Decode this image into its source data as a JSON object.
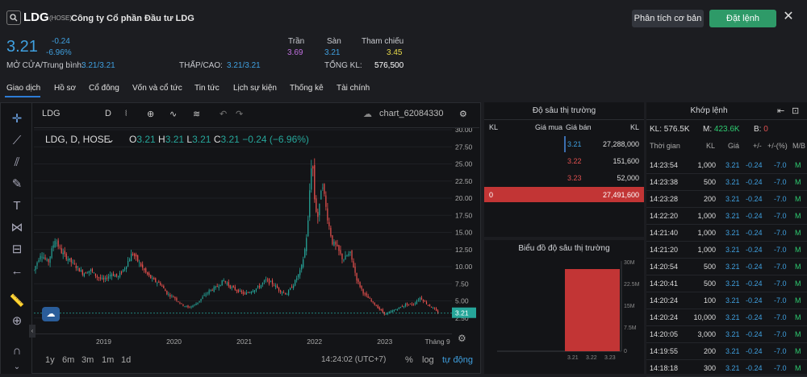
{
  "header": {
    "ticker": "LDG",
    "exchange": "(HOSE)",
    "company": "Công ty Cổ phần Đầu tư LDG",
    "btn_analysis": "Phân tích cơ bản",
    "btn_order": "Đặt lệnh",
    "close": "✕"
  },
  "quote": {
    "price": "3.21",
    "change": "-0.24",
    "change_pct": "-6.96%",
    "open_avg_label": "MỞ CỬA/Trung bình:",
    "open_avg_value": "3.21/3.21",
    "low_high_label": "THẤP/CAO:",
    "low_high_value": "3.21/3.21",
    "ceil_label": "Trần",
    "ceil_value": "3.69",
    "floor_label": "Sàn",
    "floor_value": "3.21",
    "ref_label": "Tham chiếu",
    "ref_value": "3.45",
    "total_vol_label": "TỔNG KL:",
    "total_vol_value": "576,500"
  },
  "tabs": [
    "Giao dịch",
    "Hồ sơ",
    "Cổ đông",
    "Vốn và cổ tức",
    "Tin tức",
    "Lịch sự kiện",
    "Thống kê",
    "Tài chính"
  ],
  "chart": {
    "symbol": "LDG",
    "interval": "D",
    "chart_name": "chart_62084330",
    "legend_title": "LDG, D, HOSE",
    "ohlc": {
      "o_label": "O",
      "o": "3.21",
      "h_label": "H",
      "h": "3.21",
      "l_label": "L",
      "l": "3.21",
      "c_label": "C",
      "c": "3.21",
      "chg": "−0.24 (−6.96%)"
    },
    "current_price_tag": "3.21",
    "time": "14:24:02 (UTC+7)",
    "ranges": [
      "1y",
      "6m",
      "3m",
      "1m",
      "1d"
    ],
    "opt_pct": "%",
    "opt_log": "log",
    "opt_auto": "tự động",
    "colors": {
      "up": "#26a69a",
      "down": "#ef5350",
      "bg": "#131417"
    }
  },
  "chart_data": {
    "type": "candlestick",
    "title": "",
    "xlabel": "",
    "ylabel": "",
    "ylim": [
      0,
      30
    ],
    "y_ticks": [
      "30.00",
      "27.50",
      "25.00",
      "22.50",
      "20.00",
      "17.50",
      "15.00",
      "12.50",
      "10.00",
      "7.50",
      "5.00",
      "2.50"
    ],
    "x_ticks": [
      "2019",
      "2020",
      "2021",
      "2022",
      "2023",
      "Tháng 9"
    ],
    "close_path": {
      "x": [
        2018.0,
        2018.1,
        2018.2,
        2018.3,
        2018.4,
        2018.5,
        2018.6,
        2018.7,
        2018.8,
        2018.9,
        2019.0,
        2019.1,
        2019.2,
        2019.3,
        2019.4,
        2019.5,
        2019.6,
        2019.7,
        2019.8,
        2019.9,
        2020.0,
        2020.1,
        2020.2,
        2020.3,
        2020.4,
        2020.5,
        2020.6,
        2020.7,
        2020.8,
        2020.9,
        2021.0,
        2021.1,
        2021.2,
        2021.3,
        2021.4,
        2021.5,
        2021.6,
        2021.7,
        2021.8,
        2021.85,
        2021.9,
        2021.93,
        2021.96,
        2022.0,
        2022.05,
        2022.1,
        2022.15,
        2022.2,
        2022.25,
        2022.3,
        2022.4,
        2022.5,
        2022.6,
        2022.7,
        2022.8,
        2022.9,
        2023.0,
        2023.1,
        2023.2,
        2023.3,
        2023.4,
        2023.5,
        2023.6,
        2023.7,
        2023.75
      ],
      "y": [
        9.5,
        12.0,
        10.5,
        14.0,
        12.0,
        11.0,
        10.0,
        9.0,
        9.5,
        8.5,
        8.0,
        9.0,
        8.5,
        10.0,
        12.0,
        10.5,
        9.0,
        8.0,
        7.5,
        6.0,
        5.5,
        4.5,
        4.0,
        4.5,
        5.5,
        6.5,
        7.0,
        8.0,
        7.0,
        6.5,
        6.0,
        6.5,
        7.0,
        8.0,
        7.5,
        6.5,
        6.0,
        7.5,
        9.5,
        12.0,
        16.0,
        22.0,
        26.5,
        19.0,
        17.0,
        23.0,
        19.0,
        16.0,
        13.5,
        13.0,
        11.0,
        12.0,
        8.0,
        6.0,
        5.0,
        4.0,
        3.0,
        3.5,
        4.0,
        4.5,
        4.5,
        5.5,
        4.5,
        3.8,
        3.21
      ]
    }
  },
  "depth": {
    "title": "Độ sâu thị trường",
    "headers": {
      "kl": "KL",
      "bid": "Giá mua",
      "ask": "Giá bán",
      "kl2": "KL"
    },
    "rows": [
      {
        "price": "3.21",
        "vol": "27,288,000",
        "color": "#3fa0e0"
      },
      {
        "price": "3.22",
        "vol": "151,600",
        "color": "#e05050"
      },
      {
        "price": "3.23",
        "vol": "52,000",
        "color": "#e05050"
      }
    ],
    "total_left": "0",
    "total_right": "27,491,600"
  },
  "depth_chart": {
    "title": "Biểu đồ độ sâu thị trường",
    "y_ticks": [
      "30M",
      "22.5M",
      "15M",
      "7.5M",
      "0"
    ],
    "x_ticks": [
      "3.21",
      "3.22",
      "3.23"
    ],
    "chart_data": {
      "type": "area",
      "x": [
        3.21,
        3.22,
        3.23
      ],
      "y": [
        27288000,
        27439600,
        27491600
      ]
    }
  },
  "match": {
    "title": "Khớp lệnh",
    "summary": {
      "kl_label": "KL:",
      "kl": "576.5K",
      "m_label": "M:",
      "m": "423.6K",
      "b_label": "B:",
      "b": "0"
    },
    "headers": [
      "Thời gian",
      "KL",
      "Giá",
      "+/-",
      "+/-(%)",
      "M/B"
    ],
    "rows": [
      {
        "t": "14:23:54",
        "kl": "1,000",
        "p": "3.21",
        "c": "-0.24",
        "pct": "-7.0",
        "mb": "M"
      },
      {
        "t": "14:23:38",
        "kl": "500",
        "p": "3.21",
        "c": "-0.24",
        "pct": "-7.0",
        "mb": "M"
      },
      {
        "t": "14:23:28",
        "kl": "200",
        "p": "3.21",
        "c": "-0.24",
        "pct": "-7.0",
        "mb": "M"
      },
      {
        "t": "14:22:20",
        "kl": "1,000",
        "p": "3.21",
        "c": "-0.24",
        "pct": "-7.0",
        "mb": "M"
      },
      {
        "t": "14:21:40",
        "kl": "1,000",
        "p": "3.21",
        "c": "-0.24",
        "pct": "-7.0",
        "mb": "M"
      },
      {
        "t": "14:21:20",
        "kl": "1,000",
        "p": "3.21",
        "c": "-0.24",
        "pct": "-7.0",
        "mb": "M"
      },
      {
        "t": "14:20:54",
        "kl": "500",
        "p": "3.21",
        "c": "-0.24",
        "pct": "-7.0",
        "mb": "M"
      },
      {
        "t": "14:20:41",
        "kl": "500",
        "p": "3.21",
        "c": "-0.24",
        "pct": "-7.0",
        "mb": "M"
      },
      {
        "t": "14:20:24",
        "kl": "100",
        "p": "3.21",
        "c": "-0.24",
        "pct": "-7.0",
        "mb": "M"
      },
      {
        "t": "14:20:24",
        "kl": "10,000",
        "p": "3.21",
        "c": "-0.24",
        "pct": "-7.0",
        "mb": "M"
      },
      {
        "t": "14:20:05",
        "kl": "3,000",
        "p": "3.21",
        "c": "-0.24",
        "pct": "-7.0",
        "mb": "M"
      },
      {
        "t": "14:19:55",
        "kl": "200",
        "p": "3.21",
        "c": "-0.24",
        "pct": "-7.0",
        "mb": "M"
      },
      {
        "t": "14:18:18",
        "kl": "300",
        "p": "3.21",
        "c": "-0.24",
        "pct": "-7.0",
        "mb": "M"
      }
    ]
  }
}
